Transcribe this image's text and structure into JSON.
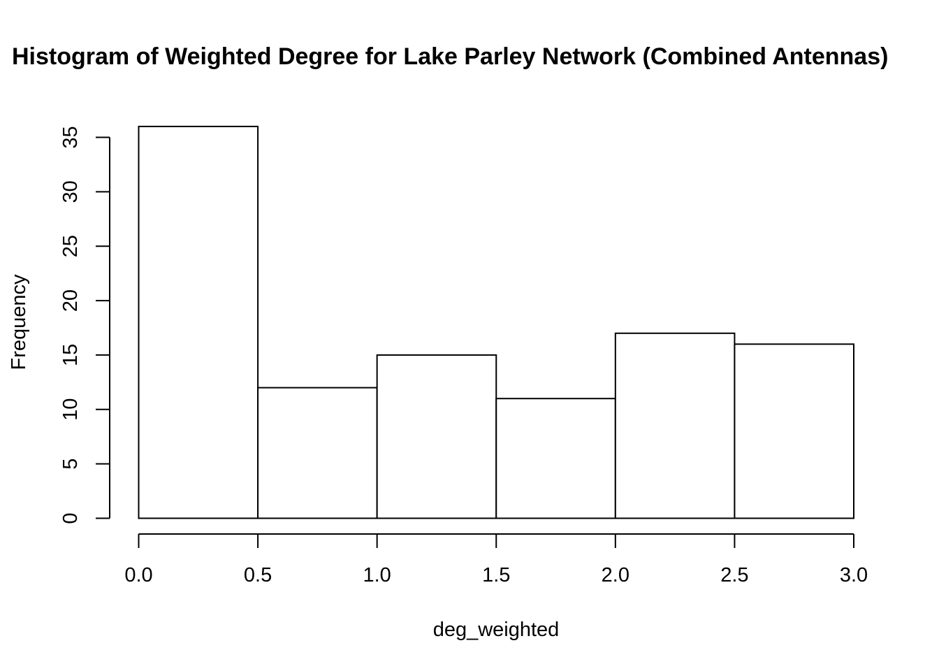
{
  "chart_data": {
    "type": "bar",
    "title": "Histogram of Weighted Degree for Lake Parley Network (Combined Antennas)",
    "xlabel": "deg_weighted",
    "ylabel": "Frequency",
    "bins": [
      {
        "start": 0.0,
        "end": 0.5,
        "count": 36
      },
      {
        "start": 0.5,
        "end": 1.0,
        "count": 12
      },
      {
        "start": 1.0,
        "end": 1.5,
        "count": 15
      },
      {
        "start": 1.5,
        "end": 2.0,
        "count": 11
      },
      {
        "start": 2.0,
        "end": 2.5,
        "count": 17
      },
      {
        "start": 2.5,
        "end": 3.0,
        "count": 16
      }
    ],
    "xlim": [
      0.0,
      3.0
    ],
    "ylim": [
      0,
      35
    ],
    "x_ticks": [
      "0.0",
      "0.5",
      "1.0",
      "1.5",
      "2.0",
      "2.5",
      "3.0"
    ],
    "y_ticks": [
      "0",
      "5",
      "10",
      "15",
      "20",
      "25",
      "30",
      "35"
    ],
    "grid": false,
    "bar_fill": "#ffffff",
    "bar_stroke": "#000000"
  }
}
